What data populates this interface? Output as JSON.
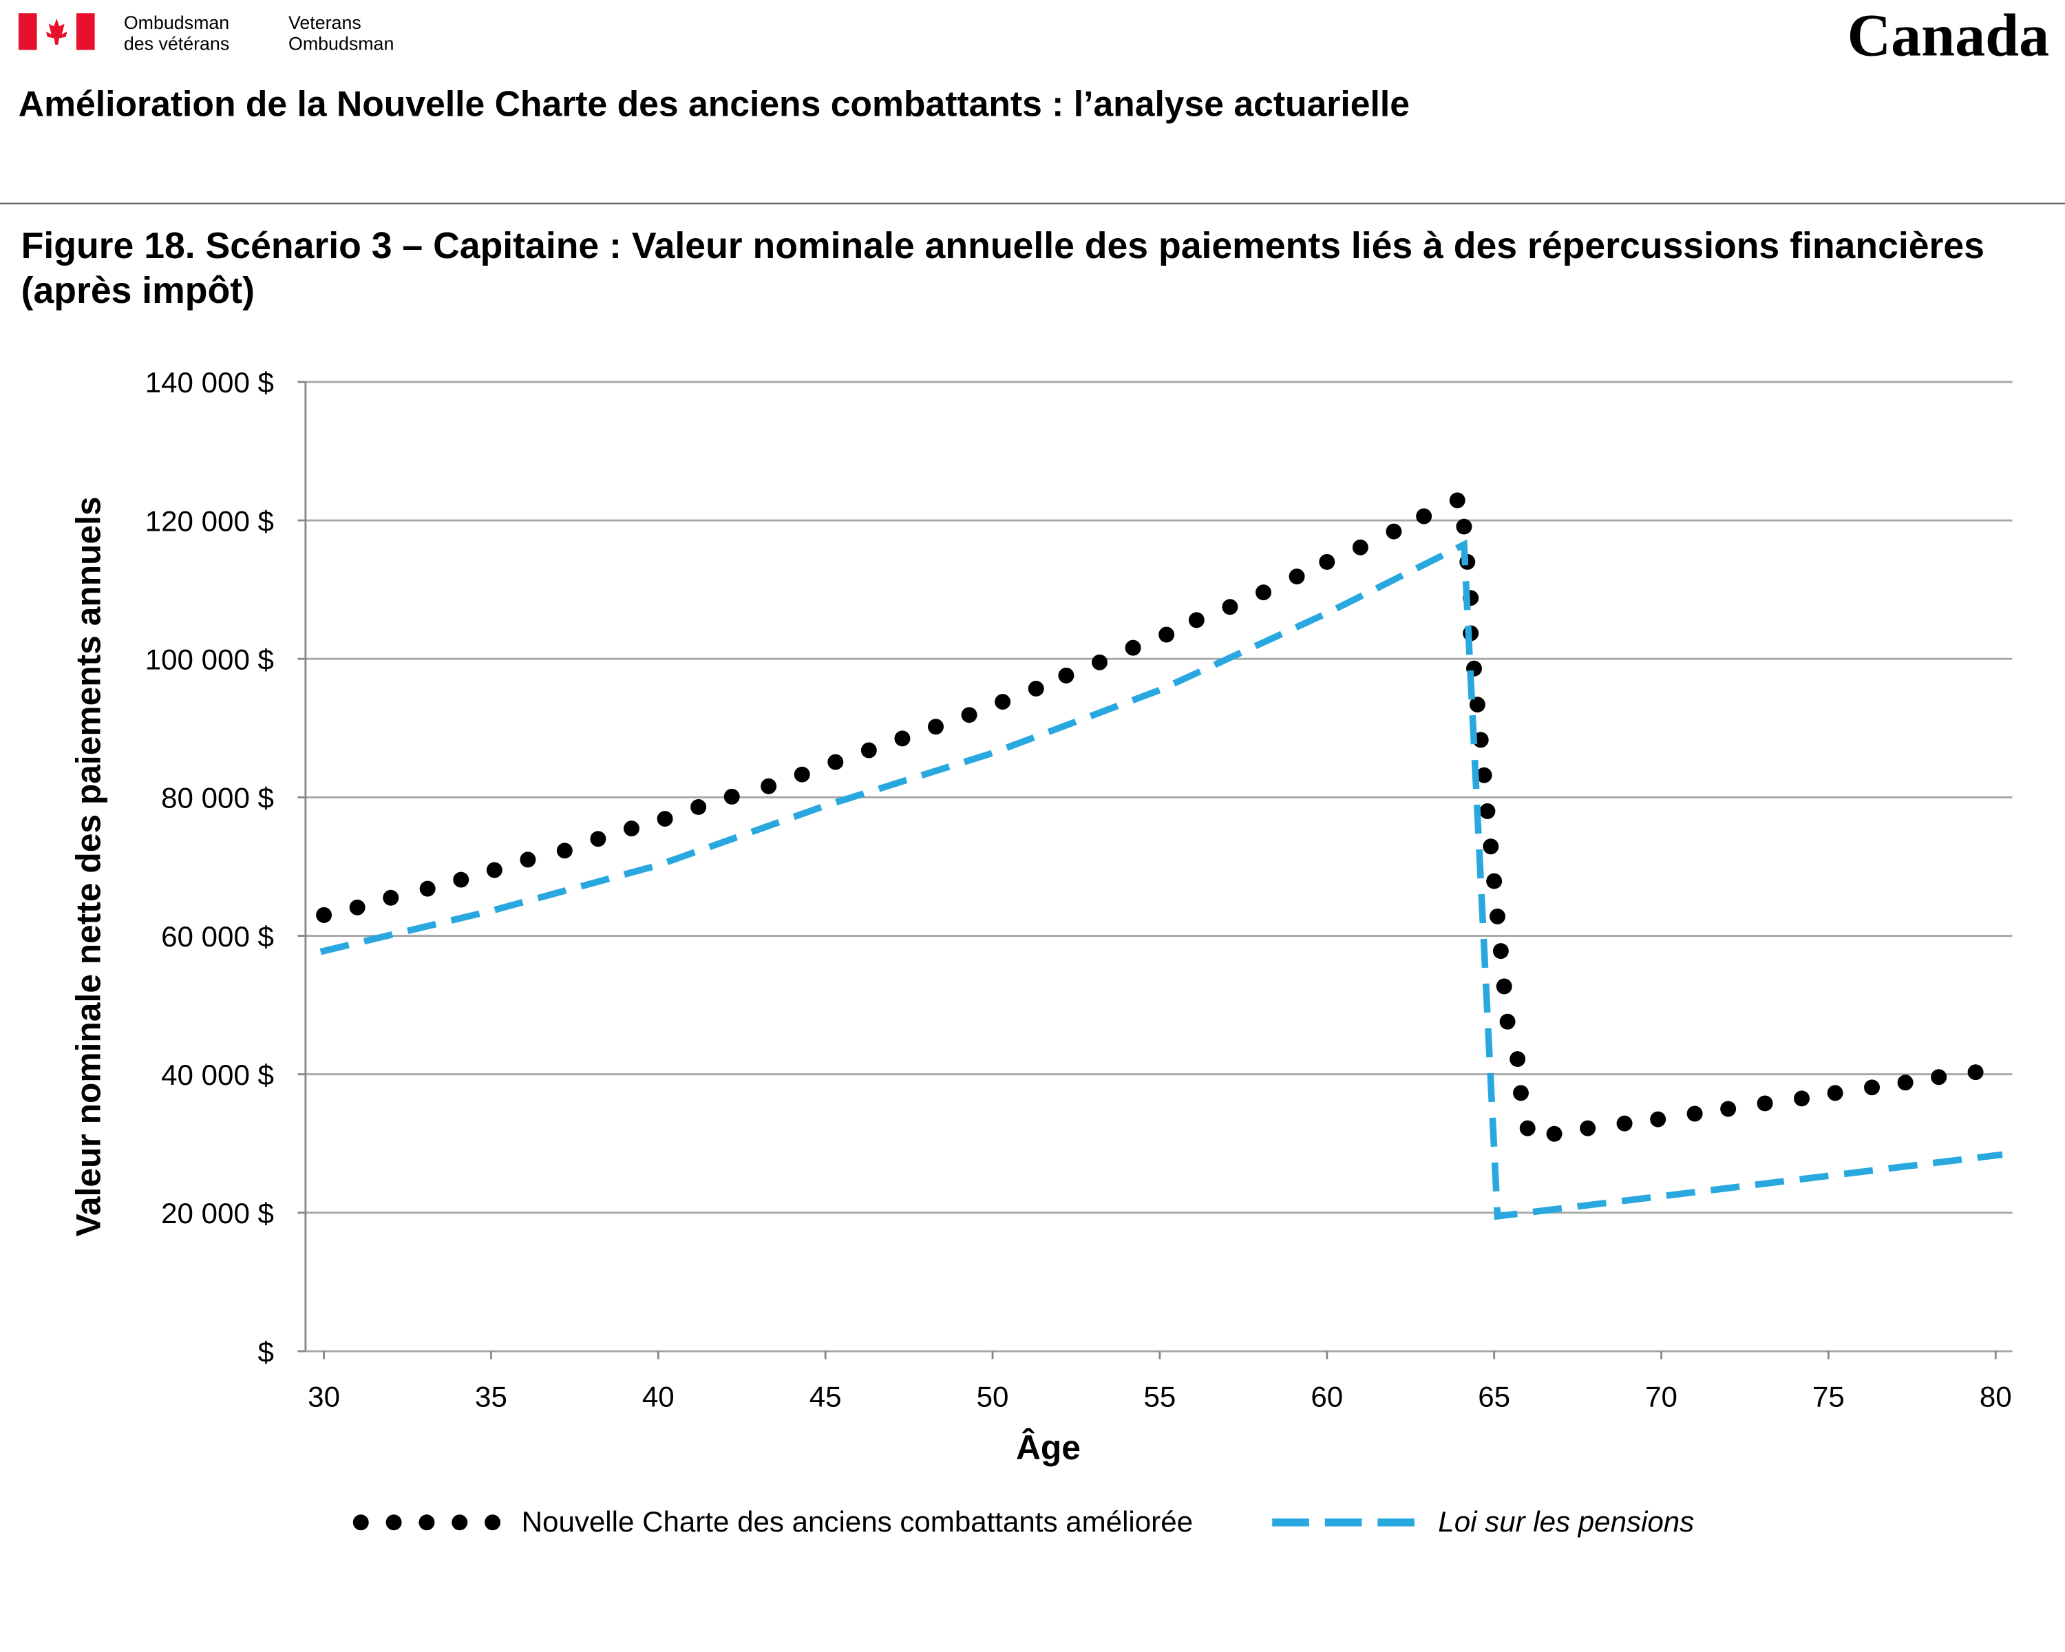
{
  "header": {
    "org_fr": [
      "Ombudsman",
      "des vétérans"
    ],
    "org_en": [
      "Veterans",
      "Ombudsman"
    ],
    "wordmark": "Canada",
    "title": "Amélioration de la Nouvelle Charte des anciens combattants : l’analyse actuarielle"
  },
  "chart_data": {
    "type": "line",
    "title": "Figure 18. Scénario 3 – Capitaine : Valeur nominale annuelle des paiements liés à des répercussions financières (après impôt)",
    "x_label": "Âge",
    "y_label": "Valeur nominale nette des paiements annuels",
    "xlim": [
      29.45,
      80.5
    ],
    "xticks": [
      30,
      35,
      40,
      45,
      50,
      55,
      60,
      65,
      70,
      75,
      80
    ],
    "ylim": [
      0,
      140000
    ],
    "yticks": [
      {
        "value": 0,
        "label": "$"
      },
      {
        "value": 20000,
        "label": "20 000 $"
      },
      {
        "value": 40000,
        "label": "40 000 $"
      },
      {
        "value": 60000,
        "label": "60 000 $"
      },
      {
        "value": 80000,
        "label": "80 000 $"
      },
      {
        "value": 100000,
        "label": "100 000 $"
      },
      {
        "value": 120000,
        "label": "120 000 $"
      },
      {
        "value": 140000,
        "label": "140 000 $"
      }
    ],
    "grid": true,
    "series": [
      {
        "name": "Nouvelle Charte des anciens combattants améliorée",
        "color": "#000000",
        "style": "dotted",
        "x": [
          30.0,
          31.0,
          32.0,
          33.1,
          34.1,
          35.1,
          36.1,
          37.2,
          38.2,
          39.2,
          40.2,
          41.2,
          42.2,
          43.3,
          44.3,
          45.3,
          46.3,
          47.3,
          48.3,
          49.3,
          50.3,
          51.3,
          52.2,
          53.2,
          54.2,
          55.2,
          56.1,
          57.1,
          58.1,
          59.1,
          60.0,
          61.0,
          62.0,
          62.9,
          63.9,
          64.1,
          64.2,
          64.3,
          64.3,
          64.4,
          64.5,
          64.6,
          64.7,
          64.8,
          64.9,
          65.0,
          65.1,
          65.2,
          65.3,
          65.4,
          65.7,
          65.8,
          66.0,
          66.8,
          67.8,
          68.9,
          69.9,
          71.0,
          72.0,
          73.1,
          74.2,
          75.2,
          76.3,
          77.3,
          78.3,
          79.4
        ],
        "values": [
          63000,
          64100,
          65500,
          66800,
          68100,
          69500,
          71000,
          72300,
          74000,
          75500,
          76900,
          78600,
          80100,
          81600,
          83300,
          85100,
          86800,
          88500,
          90200,
          91900,
          93800,
          95700,
          97600,
          99500,
          101600,
          103500,
          105600,
          107500,
          109600,
          111900,
          114000,
          116100,
          118400,
          120600,
          122900,
          119100,
          114000,
          108800,
          103700,
          98600,
          93400,
          88300,
          83200,
          78000,
          72900,
          67900,
          62800,
          57800,
          52700,
          47600,
          42200,
          37300,
          32200,
          31400,
          32200,
          32900,
          33500,
          34300,
          35000,
          35800,
          36500,
          37300,
          38100,
          38800,
          39600,
          40300
        ]
      },
      {
        "name": "Loi sur les pensions",
        "color": "#29a8e0",
        "style": "dashed",
        "x": [
          29.9,
          35,
          40,
          45,
          50,
          55,
          60,
          64.1,
          65.1,
          80.2
        ],
        "values": [
          57700,
          63600,
          70200,
          78800,
          86400,
          95500,
          106600,
          116500,
          19500,
          28400
        ]
      }
    ]
  }
}
